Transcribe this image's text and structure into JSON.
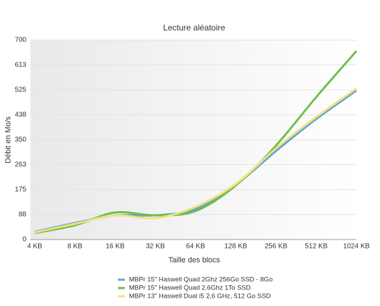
{
  "chart_data": {
    "type": "line",
    "title": "Lecture aléatoire",
    "x_label": "Taille des blocs",
    "y_label": "Débit en Mo/s",
    "categories": [
      "4 KB",
      "8 KB",
      "16 KB",
      "32 KB",
      "64 KB",
      "128 KB",
      "256 KB",
      "512 KB",
      "1024 KB"
    ],
    "series": [
      {
        "name": "MBPr 15\" Haswell Quad 2Ghz 256Go SSD - 8Go",
        "color": "#62a4da",
        "values": [
          27,
          58,
          85,
          85,
          107,
          192,
          311,
          423,
          523
        ]
      },
      {
        "name": "MBPr 15\" Haswell Quad 2.6Ghz 1To SSD",
        "color": "#6cbf4a",
        "values": [
          23,
          50,
          95,
          85,
          100,
          190,
          330,
          500,
          662
        ]
      },
      {
        "name": "MBPr 13\" Haswell Dual i5 2,6 GHz, 512 Go SSD",
        "color": "#f3e27a",
        "values": [
          25,
          55,
          85,
          75,
          115,
          195,
          320,
          430,
          530
        ]
      }
    ],
    "ylim": [
      0,
      700
    ],
    "yticks": [
      0,
      88,
      175,
      263,
      350,
      438,
      525,
      613,
      700
    ],
    "grid": true
  }
}
